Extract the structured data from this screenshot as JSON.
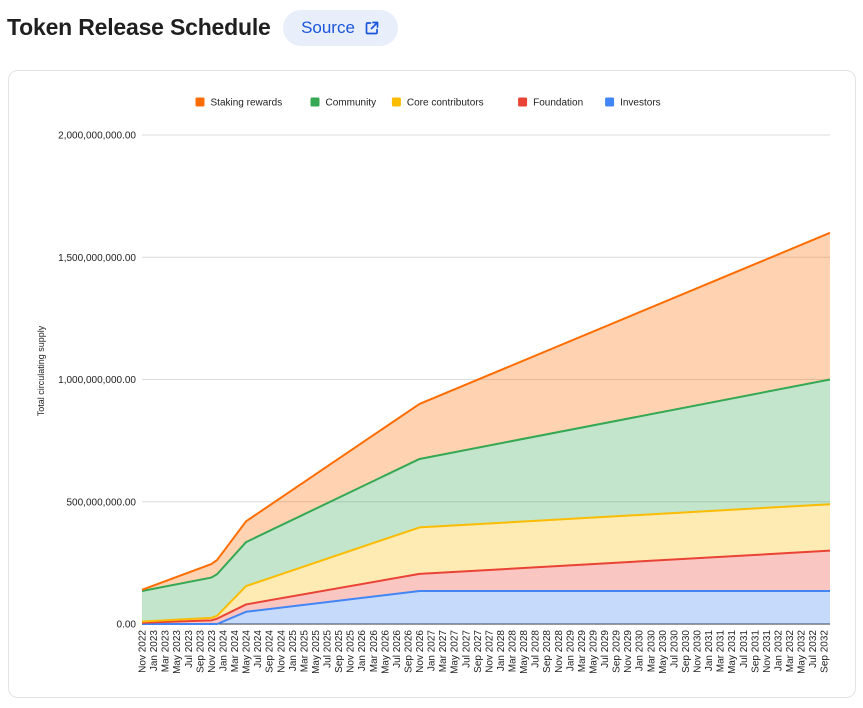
{
  "header": {
    "title": "Token Release Schedule",
    "source_label": "Source",
    "source_icon": "external-link-icon"
  },
  "chart_data": {
    "type": "area",
    "stacked": true,
    "xlabel": "",
    "ylabel": "Total circulating supply",
    "ylim": [
      0,
      2000000000
    ],
    "yticks": [
      0,
      500000000,
      1000000000,
      1500000000,
      2000000000
    ],
    "ytick_labels": [
      "0.00",
      "500,000,000.00",
      "1,000,000,000.00",
      "1,500,000,000.00",
      "2,000,000,000.00"
    ],
    "xtick_labels": [
      "Nov 2022",
      "Jan 2023",
      "Mar 2023",
      "May 2023",
      "Jul 2023",
      "Sep 2023",
      "Nov 2023",
      "Jan 2024",
      "Mar 2024",
      "May 2024",
      "Jul 2024",
      "Sep 2024",
      "Nov 2024",
      "Jan 2025",
      "Mar 2025",
      "May 2025",
      "Jul 2025",
      "Sep 2025",
      "Nov 2025",
      "Jan 2026",
      "Mar 2026",
      "May 2026",
      "Jul 2026",
      "Sep 2026",
      "Nov 2026",
      "Jan 2027",
      "Mar 2027",
      "May 2027",
      "Jul 2027",
      "Sep 2027",
      "Nov 2027",
      "Jan 2028",
      "Mar 2028",
      "May 2028",
      "Jul 2028",
      "Sep 2028",
      "Nov 2028",
      "Jan 2029",
      "Mar 2029",
      "May 2029",
      "Jul 2029",
      "Sep 2029",
      "Nov 2029",
      "Jan 2030",
      "Mar 2030",
      "May 2030",
      "Jul 2030",
      "Sep 2030",
      "Nov 2030",
      "Jan 2031",
      "Mar 2031",
      "May 2031",
      "Jul 2031",
      "Sep 2031",
      "Nov 2031",
      "Jan 2032",
      "Mar 2032",
      "May 2032",
      "Jul 2032",
      "Sep 2032"
    ],
    "x": [
      "2022-11",
      "2023-11",
      "2023-12",
      "2024-05",
      "2026-11",
      "2032-10"
    ],
    "grid": true,
    "legend_position": "top",
    "series": [
      {
        "name": "Investors",
        "color": "#4285f4",
        "values": [
          0,
          0,
          0,
          50000000,
          135000000,
          135000000
        ]
      },
      {
        "name": "Foundation",
        "color": "#ea4335",
        "values": [
          5000000,
          15000000,
          22000000,
          30000000,
          70000000,
          165000000
        ]
      },
      {
        "name": "Core contributors",
        "color": "#fbbc04",
        "values": [
          5000000,
          10000000,
          12000000,
          75000000,
          190000000,
          190000000
        ]
      },
      {
        "name": "Community",
        "color": "#34a853",
        "values": [
          125000000,
          165000000,
          170000000,
          180000000,
          280000000,
          510000000
        ]
      },
      {
        "name": "Staking rewards",
        "color": "#ff6d01",
        "values": [
          5000000,
          55000000,
          58000000,
          85000000,
          225000000,
          600000000
        ]
      }
    ],
    "legend_order": [
      "Staking rewards",
      "Community",
      "Core contributors",
      "Foundation",
      "Investors"
    ]
  }
}
